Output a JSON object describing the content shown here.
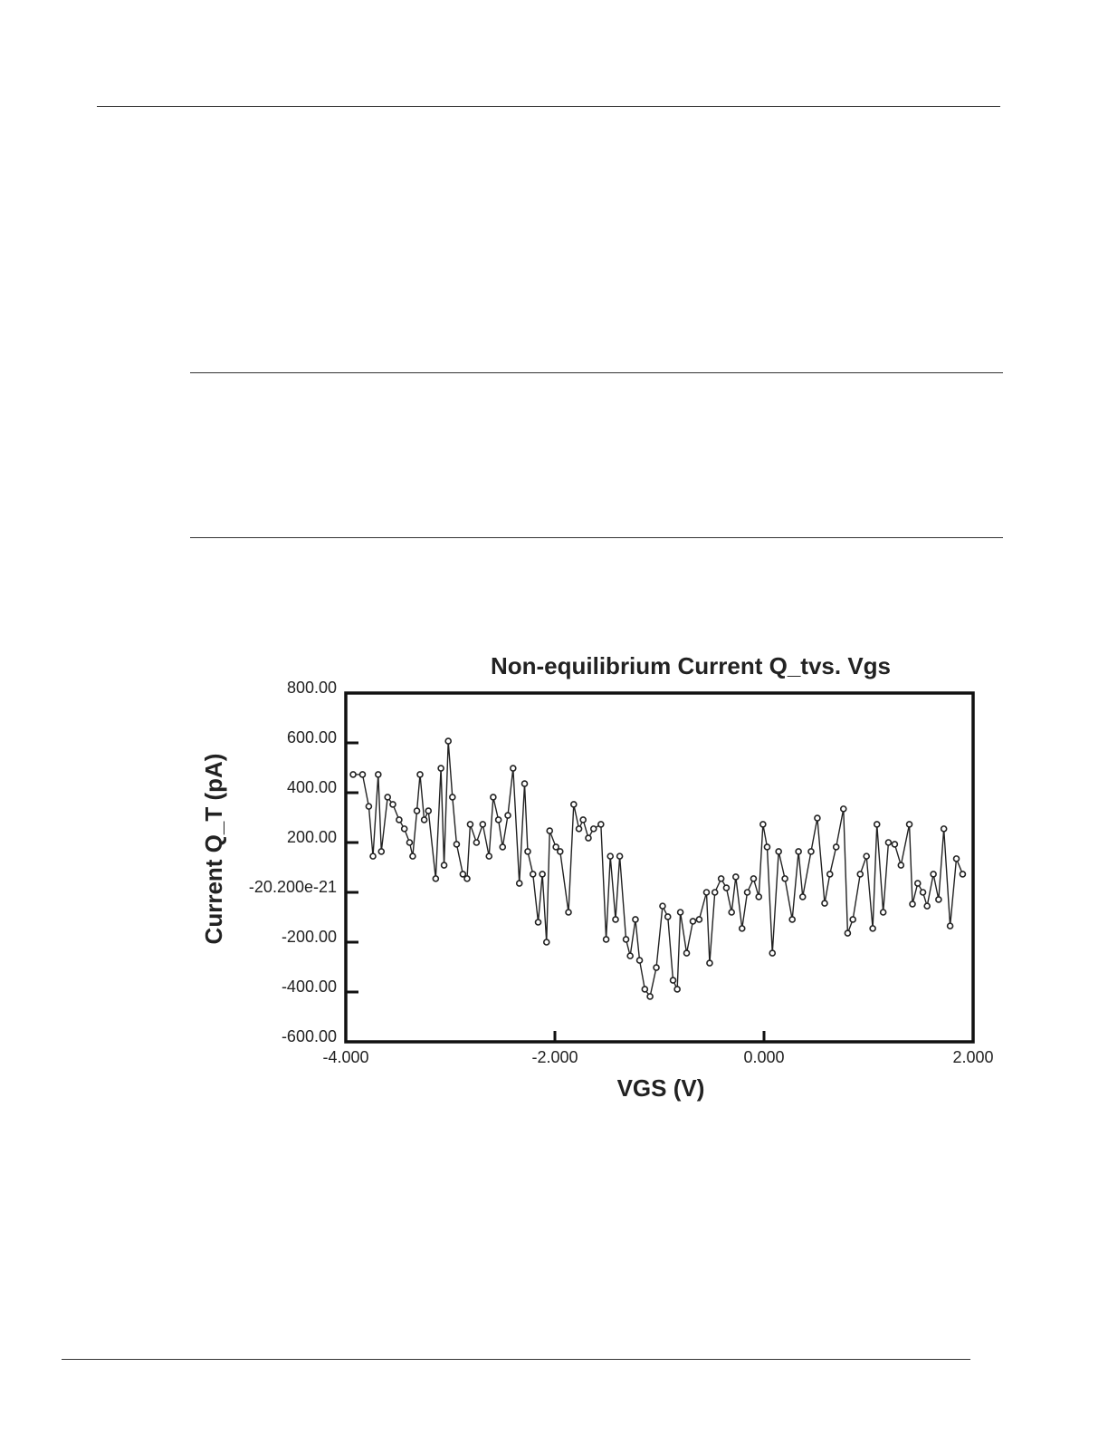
{
  "chart_data": {
    "type": "line",
    "title": "Non-equilibrium Current Q_tvs. Vgs",
    "x_label": "VGS (V)",
    "y_label": "Current Q_T (pA)",
    "x": [
      -3.93,
      -3.84,
      -3.78,
      -3.74,
      -3.69,
      -3.66,
      -3.6,
      -3.55,
      -3.49,
      -3.44,
      -3.39,
      -3.36,
      -3.32,
      -3.29,
      -3.25,
      -3.21,
      -3.14,
      -3.09,
      -3.06,
      -3.02,
      -2.98,
      -2.94,
      -2.88,
      -2.84,
      -2.81,
      -2.75,
      -2.69,
      -2.63,
      -2.59,
      -2.54,
      -2.5,
      -2.45,
      -2.4,
      -2.34,
      -2.29,
      -2.26,
      -2.21,
      -2.16,
      -2.12,
      -2.08,
      -2.05,
      -1.99,
      -1.95,
      -1.87,
      -1.82,
      -1.77,
      -1.73,
      -1.68,
      -1.63,
      -1.56,
      -1.51,
      -1.47,
      -1.42,
      -1.38,
      -1.32,
      -1.28,
      -1.23,
      -1.19,
      -1.14,
      -1.09,
      -1.03,
      -0.97,
      -0.92,
      -0.87,
      -0.83,
      -0.8,
      -0.74,
      -0.68,
      -0.62,
      -0.55,
      -0.52,
      -0.47,
      -0.41,
      -0.36,
      -0.31,
      -0.27,
      -0.21,
      -0.16,
      -0.1,
      -0.05,
      -0.01,
      0.03,
      0.08,
      0.14,
      0.2,
      0.27,
      0.33,
      0.37,
      0.45,
      0.51,
      0.58,
      0.63,
      0.69,
      0.76,
      0.8,
      0.85,
      0.92,
      0.98,
      1.04,
      1.08,
      1.14,
      1.19,
      1.25,
      1.31,
      1.39,
      1.42,
      1.47,
      1.52,
      1.56,
      1.62,
      1.67,
      1.72,
      1.78,
      1.84,
      1.9
    ],
    "values": [
      473,
      473,
      345,
      145,
      473,
      164,
      382,
      353,
      291,
      255,
      200,
      145,
      327,
      473,
      291,
      327,
      55,
      498,
      109,
      607,
      382,
      193,
      73,
      55,
      273,
      200,
      273,
      145,
      382,
      291,
      182,
      309,
      498,
      36,
      436,
      164,
      73,
      -120,
      73,
      -200,
      247,
      182,
      164,
      -80,
      353,
      255,
      291,
      218,
      255,
      273,
      -189,
      145,
      -109,
      145,
      -189,
      -255,
      -109,
      -273,
      -389,
      -418,
      -302,
      -55,
      -98,
      -353,
      -389,
      -80,
      -244,
      -116,
      -109,
      0,
      -284,
      0,
      55,
      18,
      -80,
      62,
      -145,
      0,
      55,
      -18,
      273,
      182,
      -244,
      164,
      55,
      -109,
      164,
      -18,
      164,
      298,
      -44,
      73,
      182,
      335,
      -164,
      -109,
      73,
      145,
      -145,
      273,
      -80,
      200,
      193,
      109,
      273,
      -47,
      36,
      0,
      -55,
      73,
      -29,
      255,
      -135,
      135,
      73
    ],
    "color": "#222222",
    "xlim": [
      -4,
      2
    ],
    "xticks": [
      {
        "value": -4,
        "label": "-4.000"
      },
      {
        "value": -2,
        "label": "-2.000"
      },
      {
        "value": 0,
        "label": "0.000"
      },
      {
        "value": 2,
        "label": "2.000"
      }
    ],
    "ylim": [
      -600,
      800
    ],
    "yticks": [
      {
        "value": 800,
        "label": "800.00"
      },
      {
        "value": 600,
        "label": "600.00"
      },
      {
        "value": 400,
        "label": "400.00"
      },
      {
        "value": 200,
        "label": "200.00"
      },
      {
        "value": -2.02e-20,
        "label": "-20.200e-21"
      },
      {
        "value": -200,
        "label": "-200.00"
      },
      {
        "value": -400,
        "label": "-400.00"
      },
      {
        "value": -600,
        "label": "-600.00"
      }
    ],
    "grid": false
  }
}
